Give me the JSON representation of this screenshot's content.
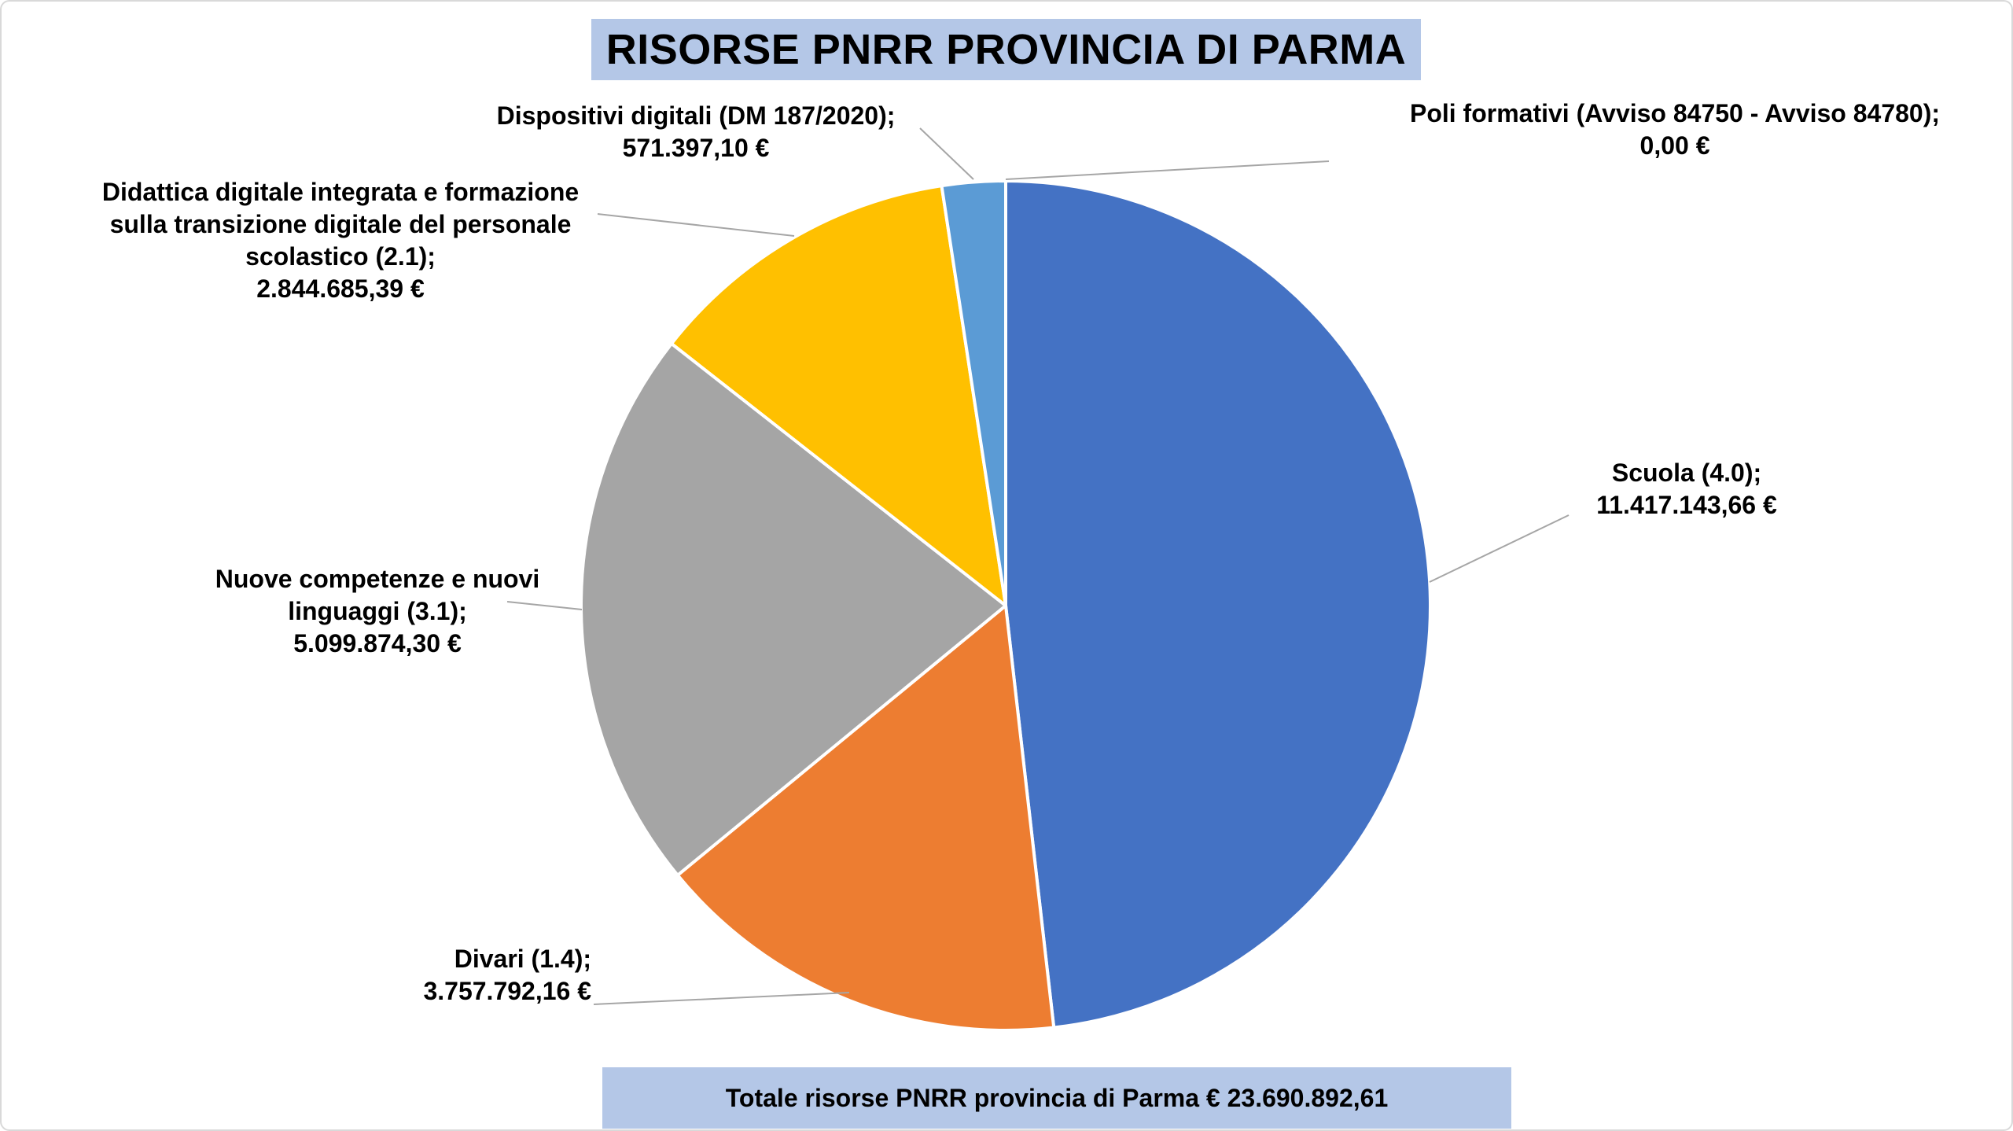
{
  "title": "RISORSE PNRR PROVINCIA DI PARMA",
  "total_label": "Totale risorse PNRR provincia di Parma € 23.690.892,61",
  "chart_data": {
    "type": "pie",
    "title": "RISORSE PNRR PROVINCIA DI PARMA",
    "slices": [
      {
        "name": "Scuola (4.0)",
        "value": 11417143.66,
        "value_label": "11.417.143,66 €",
        "color": "#4472c4"
      },
      {
        "name": "Divari (1.4)",
        "value": 3757792.16,
        "value_label": "3.757.792,16 €",
        "color": "#ed7d31"
      },
      {
        "name": "Nuove competenze e nuovi linguaggi (3.1)",
        "value": 5099874.3,
        "value_label": "5.099.874,30 €",
        "color": "#a5a5a5"
      },
      {
        "name": "Didattica digitale integrata e formazione sulla transizione digitale del personale scolastico (2.1)",
        "value": 2844685.39,
        "value_label": "2.844.685,39 €",
        "color": "#ffc000"
      },
      {
        "name": "Dispositivi digitali (DM 187/2020)",
        "value": 571397.1,
        "value_label": "571.397,10 €",
        "color": "#5b9bd5"
      },
      {
        "name": "Poli formativi (Avviso 84750 - Avviso 84780)",
        "value": 0.0,
        "value_label": "0,00 €",
        "color": "#264478"
      }
    ],
    "data_labels": [
      {
        "lines": [
          "Scuola (4.0);",
          "11.417.143,66 €"
        ]
      },
      {
        "lines": [
          "Divari (1.4);",
          "3.757.792,16 €"
        ]
      },
      {
        "lines": [
          "Nuove competenze e nuovi",
          "linguaggi (3.1);",
          "5.099.874,30 €"
        ]
      },
      {
        "lines": [
          "Didattica digitale integrata e formazione",
          "sulla transizione digitale del personale",
          "scolastico (2.1);",
          "2.844.685,39 €"
        ]
      },
      {
        "lines": [
          "Dispositivi digitali (DM 187/2020);",
          "571.397,10 €"
        ]
      },
      {
        "lines": [
          "Poli formativi (Avviso 84750 - Avviso 84780);",
          "0,00 €"
        ]
      }
    ]
  }
}
